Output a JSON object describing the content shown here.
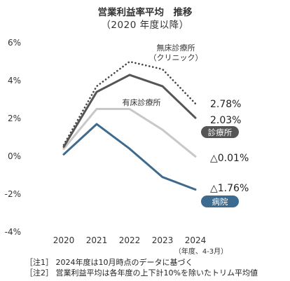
{
  "chart_data": {
    "type": "line",
    "title": "営業利益率平均　推移",
    "subtitle": "（2020 年度以降）",
    "x": [
      2020,
      2021,
      2022,
      2023,
      2024
    ],
    "x_unit_label": "（年度、4-3月）",
    "ylim": [
      -4,
      6
    ],
    "yticks": [
      "6%",
      "4%",
      "2%",
      "0%",
      "-2%",
      "-4%"
    ],
    "ytick_values": [
      6,
      4,
      2,
      0,
      -2,
      -4
    ],
    "grid": false,
    "series": [
      {
        "name": "無床診療所",
        "name_line2": "（クリニック）",
        "values": [
          0.6,
          3.7,
          5.0,
          4.6,
          2.78
        ],
        "end_label": "2.78%",
        "color": "#444444",
        "style": "dotted"
      },
      {
        "name": "診療所",
        "values": [
          0.5,
          3.4,
          4.3,
          3.7,
          2.03
        ],
        "end_label": "2.03%",
        "color": "#555555",
        "style": "solid",
        "badge": true
      },
      {
        "name": "有床診療所",
        "values": [
          0.4,
          2.5,
          2.5,
          1.4,
          -0.01
        ],
        "end_label": "△0.01%",
        "color": "#c8c8c8",
        "style": "solid"
      },
      {
        "name": "病院",
        "values": [
          0.1,
          1.7,
          0.4,
          -1.1,
          -1.76
        ],
        "end_label": "△1.76%",
        "color": "#3d6a8f",
        "style": "solid",
        "badge": true
      }
    ]
  },
  "notes": [
    "［注1］ 2024年度は10月時点のデータに基づく",
    "［注2］ 営業利益平均は各年度の上下計10%を除いたトリム平均値"
  ]
}
